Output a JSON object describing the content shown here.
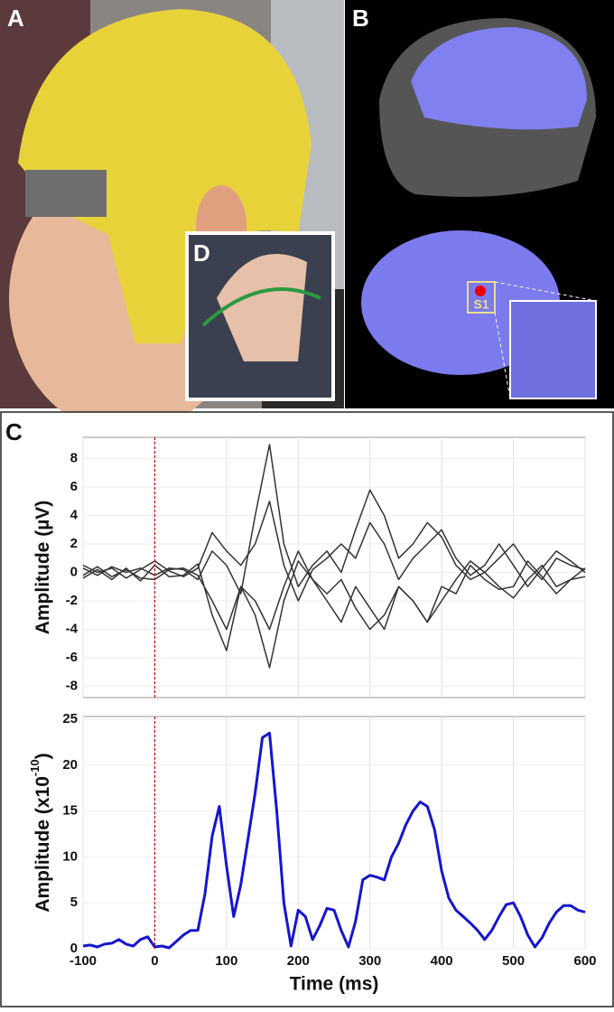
{
  "panel_labels": {
    "a": "A",
    "b": "B",
    "c": "C",
    "d": "D",
    "s1": "S1"
  },
  "chart_data": [
    {
      "type": "line",
      "ylabel": "Amplitude (µV)",
      "x": [
        -100,
        -80,
        -60,
        -40,
        -20,
        0,
        20,
        40,
        60,
        80,
        100,
        120,
        140,
        160,
        180,
        200,
        220,
        240,
        260,
        280,
        300,
        320,
        340,
        360,
        380,
        400,
        420,
        440,
        460,
        480,
        500,
        520,
        540,
        560,
        580,
        600
      ],
      "series": [
        {
          "color": "#333333",
          "values": [
            0.3,
            -0.2,
            0.4,
            0,
            0.3,
            -0.2,
            0.3,
            0.2,
            -0.5,
            1.5,
            0.5,
            -1.5,
            4,
            9,
            2,
            -1,
            0.5,
            1.5,
            0,
            3,
            5.8,
            4,
            1,
            2,
            3.5,
            2.5,
            0.5,
            -0.5,
            0,
            1,
            2,
            0.5,
            -0.5,
            1,
            0.5,
            0.2
          ]
        },
        {
          "color": "#333333",
          "values": [
            -0.4,
            0.2,
            -0.5,
            0.3,
            -0.6,
            0.5,
            -0.3,
            -0.2,
            0.6,
            -3,
            -5.5,
            -1,
            -3,
            -6.7,
            -2,
            0.8,
            -0.5,
            -1.5,
            -0.5,
            -2.5,
            -4,
            -3,
            -1,
            -2,
            -3.5,
            -2,
            -0.5,
            0.8,
            0,
            -1,
            -1.8,
            -0.5,
            0.5,
            -1,
            -0.5,
            -0.3
          ]
        },
        {
          "color": "#333333",
          "values": [
            0.5,
            0,
            0.3,
            -0.4,
            0.2,
            0.8,
            0.1,
            -0.3,
            0.3,
            2.8,
            1.5,
            0.5,
            2,
            5,
            0.5,
            -2,
            0.2,
            1,
            2,
            1,
            3.5,
            2,
            -0.5,
            1,
            2,
            3,
            1,
            -0.2,
            0.5,
            2,
            0.5,
            -1,
            0.3,
            1.5,
            0.8,
            0
          ]
        },
        {
          "color": "#333333",
          "values": [
            -0.2,
            0.4,
            -0.3,
            0.2,
            -0.4,
            -0.5,
            0.2,
            0.3,
            -0.2,
            -2,
            -4,
            -1,
            -2,
            -4,
            -1,
            1.5,
            -0.5,
            -2,
            -3.5,
            -1,
            -2.5,
            -4,
            -1,
            -2,
            -3.5,
            -1,
            -1.5,
            0.5,
            -0.5,
            -1.2,
            -1,
            0.8,
            -0.3,
            -1.5,
            -0.5,
            0.3
          ]
        }
      ],
      "xlim": [
        -100,
        600
      ],
      "ylim": [
        -8.8,
        9.5
      ],
      "yticks": [
        8,
        6,
        4,
        2,
        0,
        -2,
        -4,
        -6,
        -8
      ],
      "xticks": [
        -100,
        0,
        100,
        200,
        300,
        400,
        500,
        600
      ],
      "grid": true,
      "vline_x": 0,
      "vline_color": "#cc0000"
    },
    {
      "type": "line",
      "ylabel": "Amplitude (x10",
      "ylabel_sup": "-10",
      "ylabel_end": ")",
      "xlabel": "Time (ms)",
      "x": [
        -100,
        -90,
        -80,
        -70,
        -60,
        -50,
        -40,
        -30,
        -20,
        -10,
        0,
        10,
        20,
        30,
        40,
        50,
        60,
        70,
        80,
        90,
        100,
        110,
        120,
        130,
        140,
        150,
        160,
        170,
        180,
        190,
        200,
        210,
        220,
        230,
        240,
        250,
        260,
        270,
        280,
        290,
        300,
        310,
        320,
        330,
        340,
        350,
        360,
        370,
        380,
        390,
        400,
        410,
        420,
        430,
        440,
        450,
        460,
        470,
        480,
        490,
        500,
        510,
        520,
        530,
        540,
        550,
        560,
        570,
        580,
        590,
        600
      ],
      "series": [
        {
          "color": "#1515d0",
          "values": [
            0.3,
            0.4,
            0.2,
            0.5,
            0.6,
            1.0,
            0.5,
            0.3,
            1.0,
            1.3,
            0.2,
            0.3,
            0.1,
            0.8,
            1.5,
            2.0,
            2.0,
            6,
            12.3,
            15.5,
            9,
            3.5,
            7,
            12,
            17,
            23,
            23.5,
            15,
            5,
            0.3,
            4.2,
            3.5,
            1.0,
            2.5,
            4.4,
            4.2,
            2.0,
            0.2,
            3.0,
            7.5,
            8.0,
            7.8,
            7.5,
            10,
            11.5,
            13.5,
            15,
            16,
            15.5,
            13,
            8.5,
            5.5,
            4.2,
            3.5,
            2.8,
            2.0,
            1.0,
            2.0,
            3.5,
            4.8,
            5.0,
            3.5,
            1.5,
            0.2,
            1.2,
            2.8,
            4.0,
            4.7,
            4.7,
            4.2,
            4.0
          ]
        }
      ],
      "xlim": [
        -100,
        600
      ],
      "ylim": [
        0,
        25.3
      ],
      "yticks": [
        0,
        5,
        10,
        15,
        20,
        25
      ],
      "xticks": [
        -100,
        0,
        100,
        200,
        300,
        400,
        500,
        600
      ],
      "grid": true,
      "vline_x": 0,
      "vline_color": "#cc0000"
    }
  ]
}
